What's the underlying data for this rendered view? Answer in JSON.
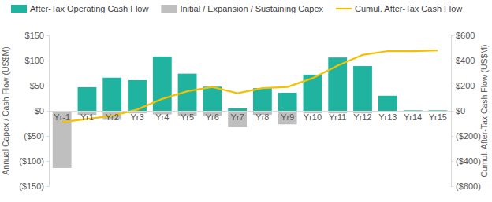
{
  "chart_data": {
    "type": "bar",
    "categories": [
      "Yr-1",
      "Yr1",
      "Yr2",
      "Yr3",
      "Yr4",
      "Yr5",
      "Yr6",
      "Yr7",
      "Yr8",
      "Yr9",
      "Yr10",
      "Yr11",
      "Yr12",
      "Yr13",
      "Yr14",
      "Yr15"
    ],
    "y_label": "Annual Capex / Cash Flow (US$M)",
    "y2_label": "Cumul. After-Tax Cash Flow (US$M)",
    "ylim": [
      -150,
      150
    ],
    "yticks": [
      {
        "value": -150,
        "label": "($150)"
      },
      {
        "value": -100,
        "label": "($100)"
      },
      {
        "value": -50,
        "label": "($50)"
      },
      {
        "value": 0,
        "label": "$0"
      },
      {
        "value": 50,
        "label": "$50"
      },
      {
        "value": 100,
        "label": "$100"
      },
      {
        "value": 150,
        "label": "$150"
      }
    ],
    "y2lim": [
      -600,
      600
    ],
    "y2ticks": [
      {
        "value": -600,
        "label": "($600)"
      },
      {
        "value": -400,
        "label": "($400)"
      },
      {
        "value": -200,
        "label": "($200)"
      },
      {
        "value": 0,
        "label": "$0"
      },
      {
        "value": 200,
        "label": "$200"
      },
      {
        "value": 400,
        "label": "$400"
      },
      {
        "value": 600,
        "label": "$600"
      }
    ],
    "legend": "top",
    "grid": false,
    "series": [
      {
        "name": "After-Tax Operating Cash Flow",
        "type": "bar",
        "color": "#1fb3a0",
        "values": [
          0,
          47,
          66,
          61,
          108,
          74,
          48,
          5,
          45,
          36,
          72,
          106,
          89,
          30,
          1,
          1
        ]
      },
      {
        "name": "Initial / Expansion / Sustaining Capex",
        "type": "bar",
        "color": "#bfbfbf",
        "values": [
          -114,
          -8,
          -18,
          -5,
          -7,
          -10,
          -10,
          -32,
          -8,
          -27,
          -5,
          -5,
          -5,
          -2,
          -1,
          -1
        ]
      },
      {
        "name": "Cumul. After-Tax Cash Flow",
        "type": "line",
        "color": "#f5c000",
        "axis": "y2",
        "values": [
          -90,
          -65,
          -40,
          10,
          95,
          155,
          190,
          140,
          180,
          190,
          260,
          360,
          445,
          475,
          475,
          480
        ]
      }
    ]
  }
}
